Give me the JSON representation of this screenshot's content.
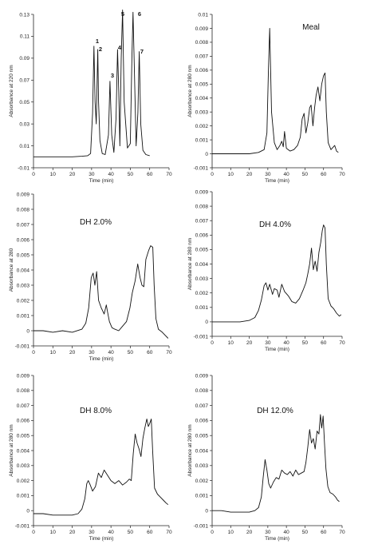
{
  "chart_data": [
    {
      "type": "line",
      "title": "",
      "xlabel": "Time (min)",
      "ylabel": "Absorbance at 220 nm",
      "xlim": [
        0,
        70
      ],
      "ylim": [
        -0.01,
        0.13
      ],
      "xticks": [
        0,
        10,
        20,
        30,
        40,
        50,
        60,
        70
      ],
      "yticks": [
        -0.01,
        0.01,
        0.03,
        0.05,
        0.07,
        0.09,
        0.11,
        0.13
      ],
      "grid": false,
      "x": [
        0,
        10,
        20,
        25,
        28,
        29.5,
        30.5,
        31.2,
        31.8,
        32.4,
        33.2,
        33.6,
        34.3,
        35.5,
        37,
        38.7,
        39.5,
        40.4,
        41.5,
        42.6,
        43.4,
        44,
        44.6,
        45.3,
        46,
        46.8,
        48.5,
        50,
        50.8,
        51.4,
        52.2,
        53,
        53.9,
        54.6,
        55.4,
        56.5,
        58,
        60
      ],
      "y": [
        0.0,
        0.0,
        0.0,
        0.0005,
        0.001,
        0.003,
        0.04,
        0.101,
        0.05,
        0.03,
        0.098,
        0.05,
        0.015,
        0.003,
        0.002,
        0.02,
        0.069,
        0.02,
        0.004,
        0.035,
        0.098,
        0.06,
        0.01,
        0.09,
        0.134,
        0.05,
        0.008,
        0.012,
        0.09,
        0.132,
        0.07,
        0.01,
        0.04,
        0.096,
        0.03,
        0.006,
        0.002,
        0.001
      ],
      "annotations": [
        "1",
        "2",
        "3",
        "4",
        "5",
        "6",
        "7"
      ]
    },
    {
      "type": "line",
      "title": "Meal",
      "xlabel": "Time (min)",
      "ylabel": "Absorbance at 280 nm",
      "xlim": [
        0,
        70
      ],
      "ylim": [
        -0.001,
        0.01
      ],
      "xticks": [
        0,
        10,
        20,
        30,
        40,
        50,
        60,
        70
      ],
      "yticks": [
        -0.001,
        0,
        0.001,
        0.002,
        0.003,
        0.004,
        0.005,
        0.006,
        0.007,
        0.008,
        0.009,
        0.01
      ],
      "grid": false,
      "x": [
        0,
        10,
        20,
        25,
        28,
        29.5,
        30.3,
        31,
        32,
        33.5,
        35,
        36.5,
        37.5,
        38.3,
        39,
        40,
        42,
        44,
        46,
        47.5,
        48.5,
        49.5,
        50.5,
        51.5,
        52.5,
        53.3,
        54.3,
        55.2,
        56,
        57,
        58,
        59,
        60,
        60.8,
        61.5,
        62.5,
        64,
        66,
        67,
        68
      ],
      "y": [
        0.0,
        0.0,
        0.0,
        0.0001,
        0.0003,
        0.0015,
        0.006,
        0.009,
        0.003,
        0.0008,
        0.0003,
        0.0006,
        0.0009,
        0.0005,
        0.0016,
        0.0004,
        0.0002,
        0.0003,
        0.0006,
        0.0012,
        0.0025,
        0.0029,
        0.0015,
        0.0022,
        0.0033,
        0.0035,
        0.002,
        0.0033,
        0.0042,
        0.0048,
        0.0038,
        0.005,
        0.0056,
        0.0058,
        0.003,
        0.0008,
        0.0003,
        0.0006,
        0.0002,
        0.0001
      ]
    },
    {
      "type": "line",
      "title": "DH 2.0%",
      "xlabel": "Time (min)",
      "ylabel": "Absorbance at 280",
      "xlim": [
        0,
        70
      ],
      "ylim": [
        -0.001,
        0.009
      ],
      "xticks": [
        0,
        10,
        20,
        30,
        40,
        50,
        60,
        70
      ],
      "yticks": [
        -0.001,
        0,
        0.001,
        0.002,
        0.003,
        0.004,
        0.005,
        0.006,
        0.007,
        0.008,
        0.009
      ],
      "grid": false,
      "x": [
        0,
        5,
        10,
        15,
        20,
        25,
        27,
        28.5,
        29.8,
        30.8,
        31.7,
        32.6,
        33.6,
        35,
        36.5,
        37.6,
        38.3,
        39.2,
        40.5,
        42,
        44,
        46,
        48,
        49.8,
        51,
        52.5,
        53.8,
        55,
        56,
        57,
        58,
        59.5,
        60.5,
        61.6,
        62.3,
        63.2,
        64.5,
        66.5,
        68,
        69.5
      ],
      "y": [
        0.0,
        0.0,
        -0.0001,
        0.0,
        -0.0001,
        0.0001,
        0.0005,
        0.0015,
        0.0035,
        0.0038,
        0.003,
        0.0039,
        0.002,
        0.0015,
        0.0011,
        0.0017,
        0.0012,
        0.0006,
        0.0002,
        0.0001,
        0.0,
        0.0003,
        0.0006,
        0.0015,
        0.0025,
        0.0033,
        0.0044,
        0.0035,
        0.003,
        0.0029,
        0.0047,
        0.0053,
        0.0056,
        0.0055,
        0.003,
        0.0008,
        0.0001,
        -0.0001,
        -0.0003,
        -0.0005
      ]
    },
    {
      "type": "line",
      "title": "DH 4.0%",
      "xlabel": "Time (min)",
      "ylabel": "Absorbance at 280 nm",
      "xlim": [
        0,
        70
      ],
      "ylim": [
        -0.001,
        0.009
      ],
      "xticks": [
        0,
        10,
        20,
        30,
        40,
        50,
        60,
        70
      ],
      "yticks": [
        -0.001,
        0,
        0.001,
        0.002,
        0.003,
        0.004,
        0.005,
        0.006,
        0.007,
        0.008,
        0.009
      ],
      "grid": false,
      "x": [
        0,
        5,
        10,
        15,
        20,
        23,
        25,
        26.5,
        28,
        29,
        30,
        31,
        32.5,
        33.5,
        35,
        36,
        37.5,
        39,
        41,
        43,
        45,
        47,
        49,
        50.5,
        51.5,
        52.5,
        53.5,
        54.5,
        55.5,
        56.5,
        57.5,
        58.5,
        59.3,
        60,
        60.8,
        61.5,
        62.5,
        64,
        65.5,
        67,
        68.5,
        69.5
      ],
      "y": [
        0.0,
        0.0,
        0.0,
        0.0,
        0.0001,
        0.0003,
        0.0008,
        0.0015,
        0.0025,
        0.0027,
        0.0022,
        0.0026,
        0.0019,
        0.0023,
        0.0022,
        0.0017,
        0.0026,
        0.0021,
        0.0018,
        0.0014,
        0.0013,
        0.0016,
        0.0022,
        0.0027,
        0.0033,
        0.004,
        0.0051,
        0.0036,
        0.0042,
        0.0035,
        0.0048,
        0.0055,
        0.0063,
        0.0067,
        0.0065,
        0.004,
        0.0016,
        0.0011,
        0.0009,
        0.0006,
        0.0004,
        0.0005
      ]
    },
    {
      "type": "line",
      "title": "DH 8.0%",
      "xlabel": "Time (min)",
      "ylabel": "Absorbance at 280 nm",
      "xlim": [
        0,
        70
      ],
      "ylim": [
        -0.001,
        0.009
      ],
      "xticks": [
        0,
        10,
        20,
        30,
        40,
        50,
        60,
        70
      ],
      "yticks": [
        -0.001,
        0,
        0.001,
        0.002,
        0.003,
        0.004,
        0.005,
        0.006,
        0.007,
        0.008,
        0.009
      ],
      "grid": false,
      "x": [
        0,
        5,
        10,
        15,
        20,
        23,
        25,
        26.5,
        27.5,
        28.3,
        29.3,
        30.5,
        32,
        33.5,
        35,
        36.5,
        38,
        40,
        42,
        44,
        46,
        48,
        49.5,
        50.5,
        51.5,
        52.5,
        53.5,
        54.5,
        55.5,
        56.5,
        57.5,
        58.5,
        59.3,
        60,
        60.8,
        61.5,
        62.5,
        64,
        65.5,
        67,
        68.5,
        69.5
      ],
      "y": [
        -0.0002,
        -0.0002,
        -0.0003,
        -0.0003,
        -0.0003,
        -0.0002,
        0.0001,
        0.0008,
        0.0018,
        0.002,
        0.0017,
        0.0013,
        0.0016,
        0.0025,
        0.0022,
        0.0027,
        0.0024,
        0.002,
        0.0018,
        0.002,
        0.0017,
        0.0019,
        0.0021,
        0.002,
        0.0038,
        0.0051,
        0.0045,
        0.0041,
        0.0036,
        0.0048,
        0.0055,
        0.0061,
        0.0056,
        0.0058,
        0.0061,
        0.004,
        0.0015,
        0.0011,
        0.0009,
        0.0007,
        0.0005,
        0.0004
      ]
    },
    {
      "type": "line",
      "title": "DH 12.0%",
      "xlabel": "Time (min)",
      "ylabel": "Absorbance at 280 nm",
      "xlim": [
        0,
        70
      ],
      "ylim": [
        -0.001,
        0.009
      ],
      "xticks": [
        0,
        10,
        20,
        30,
        40,
        50,
        60,
        70
      ],
      "yticks": [
        -0.001,
        0,
        0.001,
        0.002,
        0.003,
        0.004,
        0.005,
        0.006,
        0.007,
        0.008,
        0.009
      ],
      "grid": false,
      "x": [
        0,
        5,
        10,
        15,
        20,
        23,
        25,
        26.5,
        27.5,
        28.5,
        29.5,
        30.5,
        31.5,
        33,
        34.5,
        36,
        37.5,
        39,
        40.5,
        42,
        43.5,
        45,
        46.5,
        48,
        49.5,
        50.5,
        51.5,
        52.5,
        53.5,
        54.5,
        55.5,
        56.5,
        57.5,
        58.3,
        59,
        59.8,
        60.5,
        61.3,
        62.3,
        63.5,
        65,
        66.5,
        67.5,
        68.5
      ],
      "y": [
        0.0,
        0.0,
        -0.0001,
        -0.0001,
        -0.0001,
        0.0,
        0.0002,
        0.0009,
        0.0022,
        0.0034,
        0.0027,
        0.0018,
        0.0015,
        0.0019,
        0.0022,
        0.0021,
        0.0027,
        0.0025,
        0.0024,
        0.0026,
        0.0023,
        0.0027,
        0.0024,
        0.0025,
        0.0026,
        0.0032,
        0.0042,
        0.0054,
        0.0045,
        0.0048,
        0.0041,
        0.0053,
        0.0051,
        0.0064,
        0.0055,
        0.0063,
        0.0045,
        0.0028,
        0.0016,
        0.0012,
        0.0011,
        0.0009,
        0.0007,
        0.0006
      ]
    }
  ]
}
